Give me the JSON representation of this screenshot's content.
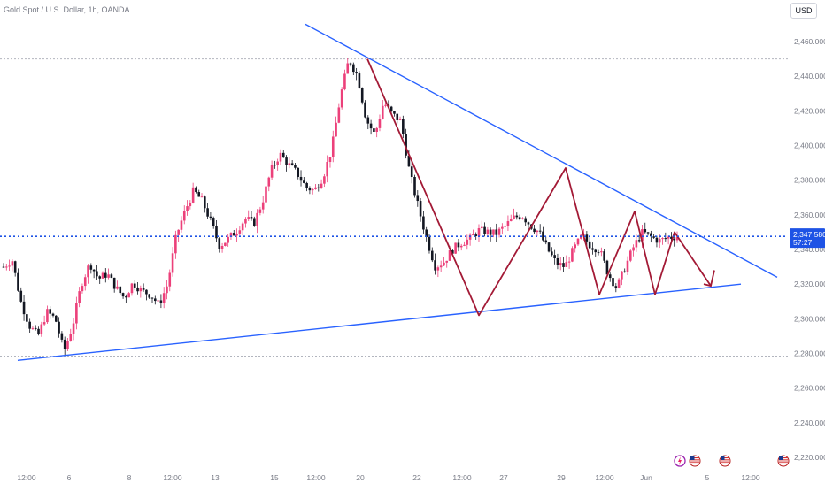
{
  "header": {
    "title": "Gold Spot / U.S. Dollar, 1h, OANDA",
    "currency": "USD"
  },
  "price_label": {
    "value": "2,347.580",
    "countdown": "57:27"
  },
  "colors": {
    "up": "#ec407a",
    "down": "#131722",
    "trendline": "#2962ff",
    "pattern": "#a31a36",
    "price_line": "#1e53e5",
    "axis_text": "#787b86"
  },
  "chart_data": {
    "type": "line",
    "title": "Gold Spot / U.S. Dollar, 1h, OANDA",
    "xlabel": "",
    "ylabel": "",
    "x_ticks": [
      "12:00",
      "6",
      "8",
      "12:00",
      "13",
      "15",
      "12:00",
      "20",
      "22",
      "12:00",
      "27",
      "29",
      "12:00",
      "Jun",
      "5",
      "12:00"
    ],
    "y_ticks": [
      2220,
      2240,
      2260,
      2280,
      2300,
      2320,
      2340,
      2360,
      2380,
      2400,
      2420,
      2440,
      2460
    ],
    "ylim": [
      2214,
      2474
    ],
    "grid": false,
    "current_price": 2347.58,
    "horizontal_levels": [
      2450.0,
      2278.5
    ],
    "series": [
      {
        "values": [
          2330,
          2334,
          2310,
          2296,
          2290,
          2304,
          2300,
          2281,
          2296,
          2320,
          2332,
          2323,
          2326,
          2318,
          2312,
          2321,
          2316,
          2314,
          2308,
          2320,
          2348,
          2362,
          2374,
          2368,
          2356,
          2342,
          2346,
          2351,
          2358,
          2355,
          2368,
          2386,
          2395,
          2389,
          2384,
          2376,
          2374,
          2382,
          2398,
          2428,
          2450,
          2440,
          2415,
          2406,
          2425,
          2418,
          2414,
          2385,
          2365,
          2346,
          2330,
          2333,
          2340,
          2344,
          2346,
          2351,
          2350,
          2349,
          2353,
          2358,
          2360,
          2354,
          2350,
          2340,
          2332,
          2330,
          2340,
          2348,
          2342,
          2340,
          2326,
          2318,
          2330,
          2342,
          2350,
          2347,
          2345,
          2347,
          2347.58
        ]
      }
    ],
    "trendlines": [
      {
        "from": [
          2470,
          "2024-05-16"
        ],
        "to": [
          2324,
          "2024-06-06"
        ]
      },
      {
        "from": [
          2276,
          "2024-05-03"
        ],
        "to": [
          2320,
          "2024-06-05"
        ]
      }
    ],
    "pattern_zigzag": [
      2450,
      2302,
      2387,
      2314,
      2362,
      2314,
      2350,
      2319
    ],
    "events": [
      "lightning",
      "us-flag",
      "us-flag",
      "us-flag"
    ]
  }
}
